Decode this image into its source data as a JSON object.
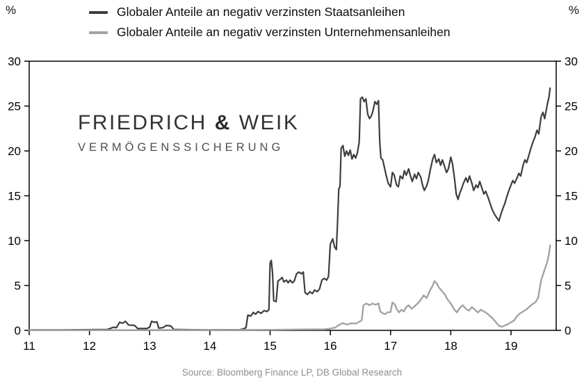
{
  "axes": {
    "left_unit": "%",
    "right_unit": "%"
  },
  "watermark": {
    "name_part1": "FRIEDRICH",
    "ampersand": "&",
    "name_part2": "WEIK",
    "subtitle": "VERMÖGENSSICHERUNG"
  },
  "source": "Source: Bloomberg Finance LP, DB Global Research",
  "chart_data": {
    "type": "line",
    "title": "",
    "xlabel": "",
    "ylabel": "%",
    "xlim": [
      11,
      19.75
    ],
    "ylim": [
      0,
      30
    ],
    "xticks": [
      11,
      12,
      13,
      14,
      15,
      16,
      17,
      18,
      19
    ],
    "yticks": [
      0,
      5,
      10,
      15,
      20,
      25,
      30
    ],
    "grid": false,
    "legend_position": "top",
    "frame": true,
    "series": [
      {
        "name": "Globaler Anteile an negativ verzinsten Staatsanleihen",
        "color": "#3d3d3d",
        "width": 2.2,
        "points": [
          [
            11,
            0.05
          ],
          [
            11.5,
            0.05
          ],
          [
            12,
            0.08
          ],
          [
            12.3,
            0.1
          ],
          [
            12.4,
            0.35
          ],
          [
            12.45,
            0.3
          ],
          [
            12.5,
            0.9
          ],
          [
            12.55,
            0.8
          ],
          [
            12.6,
            1
          ],
          [
            12.65,
            0.6
          ],
          [
            12.75,
            0.55
          ],
          [
            12.8,
            0.2
          ],
          [
            12.95,
            0.2
          ],
          [
            13,
            0.35
          ],
          [
            13.03,
            1
          ],
          [
            13.08,
            0.9
          ],
          [
            13.12,
            0.95
          ],
          [
            13.15,
            0.25
          ],
          [
            13.22,
            0.3
          ],
          [
            13.28,
            0.55
          ],
          [
            13.35,
            0.5
          ],
          [
            13.4,
            0.1
          ],
          [
            13.6,
            0.08
          ],
          [
            14,
            0.05
          ],
          [
            14.5,
            0.08
          ],
          [
            14.55,
            0.15
          ],
          [
            14.6,
            0.3
          ],
          [
            14.63,
            1.7
          ],
          [
            14.68,
            1.6
          ],
          [
            14.72,
            2
          ],
          [
            14.76,
            1.8
          ],
          [
            14.8,
            2.1
          ],
          [
            14.85,
            1.9
          ],
          [
            14.9,
            2.2
          ],
          [
            14.95,
            2.1
          ],
          [
            14.98,
            2.3
          ],
          [
            15,
            7.5
          ],
          [
            15.02,
            7.8
          ],
          [
            15.04,
            6.4
          ],
          [
            15.06,
            3.3
          ],
          [
            15.1,
            3.2
          ],
          [
            15.13,
            5.5
          ],
          [
            15.17,
            5.7
          ],
          [
            15.2,
            5.9
          ],
          [
            15.23,
            5.4
          ],
          [
            15.27,
            5.6
          ],
          [
            15.3,
            5.3
          ],
          [
            15.33,
            5.6
          ],
          [
            15.37,
            5.3
          ],
          [
            15.4,
            5.5
          ],
          [
            15.44,
            6.3
          ],
          [
            15.48,
            6.5
          ],
          [
            15.52,
            6.3
          ],
          [
            15.55,
            6.5
          ],
          [
            15.58,
            4.2
          ],
          [
            15.62,
            4
          ],
          [
            15.66,
            4.3
          ],
          [
            15.7,
            4.1
          ],
          [
            15.74,
            4.5
          ],
          [
            15.78,
            4.3
          ],
          [
            15.82,
            4.6
          ],
          [
            15.86,
            5.6
          ],
          [
            15.9,
            5.8
          ],
          [
            15.94,
            5.6
          ],
          [
            15.97,
            6
          ],
          [
            16,
            9.6
          ],
          [
            16.02,
            9.9
          ],
          [
            16.04,
            10.2
          ],
          [
            16.07,
            9.3
          ],
          [
            16.1,
            9
          ],
          [
            16.12,
            12
          ],
          [
            16.14,
            15.8
          ],
          [
            16.16,
            16
          ],
          [
            16.18,
            20.3
          ],
          [
            16.21,
            20.6
          ],
          [
            16.24,
            19.4
          ],
          [
            16.27,
            20
          ],
          [
            16.3,
            19.5
          ],
          [
            16.33,
            20.1
          ],
          [
            16.36,
            19.1
          ],
          [
            16.39,
            19.6
          ],
          [
            16.42,
            19.2
          ],
          [
            16.45,
            19.8
          ],
          [
            16.48,
            21
          ],
          [
            16.5,
            25.8
          ],
          [
            16.53,
            26
          ],
          [
            16.56,
            25.5
          ],
          [
            16.59,
            25.8
          ],
          [
            16.62,
            24.1
          ],
          [
            16.65,
            23.6
          ],
          [
            16.68,
            23.9
          ],
          [
            16.71,
            24.5
          ],
          [
            16.74,
            25.5
          ],
          [
            16.77,
            25.2
          ],
          [
            16.8,
            25.6
          ],
          [
            16.82,
            21
          ],
          [
            16.84,
            19.2
          ],
          [
            16.87,
            19
          ],
          [
            16.9,
            18.1
          ],
          [
            16.93,
            17.2
          ],
          [
            16.96,
            16.4
          ],
          [
            17,
            16
          ],
          [
            17.03,
            17.6
          ],
          [
            17.06,
            17.3
          ],
          [
            17.1,
            16.2
          ],
          [
            17.13,
            16
          ],
          [
            17.16,
            17.2
          ],
          [
            17.2,
            16.9
          ],
          [
            17.23,
            17.8
          ],
          [
            17.26,
            17.3
          ],
          [
            17.3,
            18
          ],
          [
            17.33,
            17.2
          ],
          [
            17.36,
            16.6
          ],
          [
            17.4,
            17.4
          ],
          [
            17.43,
            16.9
          ],
          [
            17.46,
            17.6
          ],
          [
            17.5,
            17.1
          ],
          [
            17.53,
            16.2
          ],
          [
            17.56,
            15.6
          ],
          [
            17.6,
            16.1
          ],
          [
            17.63,
            16.8
          ],
          [
            17.66,
            17.9
          ],
          [
            17.7,
            19.1
          ],
          [
            17.73,
            19.6
          ],
          [
            17.76,
            18.7
          ],
          [
            17.8,
            19.1
          ],
          [
            17.83,
            18.4
          ],
          [
            17.86,
            19
          ],
          [
            17.9,
            18.2
          ],
          [
            17.93,
            17.6
          ],
          [
            17.96,
            18
          ],
          [
            18,
            19.3
          ],
          [
            18.03,
            18.5
          ],
          [
            18.06,
            17
          ],
          [
            18.09,
            15.2
          ],
          [
            18.12,
            14.6
          ],
          [
            18.15,
            15.3
          ],
          [
            18.18,
            15.8
          ],
          [
            18.21,
            16.4
          ],
          [
            18.25,
            17
          ],
          [
            18.28,
            16.5
          ],
          [
            18.31,
            17.2
          ],
          [
            18.35,
            16.4
          ],
          [
            18.38,
            15.6
          ],
          [
            18.42,
            16.2
          ],
          [
            18.45,
            15.9
          ],
          [
            18.48,
            16.6
          ],
          [
            18.52,
            15.8
          ],
          [
            18.55,
            15.2
          ],
          [
            18.58,
            15.5
          ],
          [
            18.62,
            14.8
          ],
          [
            18.65,
            14.2
          ],
          [
            18.68,
            13.6
          ],
          [
            18.72,
            13
          ],
          [
            18.76,
            12.6
          ],
          [
            18.8,
            12.2
          ],
          [
            18.83,
            12.9
          ],
          [
            18.86,
            13.5
          ],
          [
            18.9,
            14.2
          ],
          [
            18.93,
            14.9
          ],
          [
            18.96,
            15.5
          ],
          [
            19,
            16.2
          ],
          [
            19.03,
            16.7
          ],
          [
            19.06,
            16.4
          ],
          [
            19.1,
            17
          ],
          [
            19.13,
            17.5
          ],
          [
            19.16,
            17.2
          ],
          [
            19.2,
            18.4
          ],
          [
            19.23,
            19
          ],
          [
            19.26,
            18.7
          ],
          [
            19.3,
            19.6
          ],
          [
            19.33,
            20.3
          ],
          [
            19.36,
            20.9
          ],
          [
            19.4,
            21.6
          ],
          [
            19.43,
            22.3
          ],
          [
            19.46,
            21.9
          ],
          [
            19.5,
            23.8
          ],
          [
            19.53,
            24.3
          ],
          [
            19.56,
            23.6
          ],
          [
            19.6,
            25.1
          ],
          [
            19.63,
            26
          ],
          [
            19.65,
            27
          ]
        ]
      },
      {
        "name": "Globaler Anteile an negativ verzinsten Unternehmensanleihen",
        "color": "#a3a3a3",
        "width": 2.4,
        "points": [
          [
            11,
            0.02
          ],
          [
            13,
            0.03
          ],
          [
            14,
            0.03
          ],
          [
            15,
            0.06
          ],
          [
            15.5,
            0.1
          ],
          [
            15.9,
            0.12
          ],
          [
            16,
            0.2
          ],
          [
            16.08,
            0.3
          ],
          [
            16.13,
            0.55
          ],
          [
            16.2,
            0.8
          ],
          [
            16.28,
            0.65
          ],
          [
            16.35,
            0.8
          ],
          [
            16.42,
            0.75
          ],
          [
            16.48,
            0.95
          ],
          [
            16.52,
            1.1
          ],
          [
            16.55,
            2.8
          ],
          [
            16.6,
            3
          ],
          [
            16.65,
            2.8
          ],
          [
            16.7,
            3
          ],
          [
            16.75,
            2.85
          ],
          [
            16.8,
            3
          ],
          [
            16.83,
            2.1
          ],
          [
            16.87,
            1.9
          ],
          [
            16.91,
            1.8
          ],
          [
            16.95,
            2
          ],
          [
            17,
            2.05
          ],
          [
            17.03,
            3.1
          ],
          [
            17.07,
            2.9
          ],
          [
            17.1,
            2.4
          ],
          [
            17.14,
            2
          ],
          [
            17.18,
            2.3
          ],
          [
            17.22,
            2.1
          ],
          [
            17.26,
            2.6
          ],
          [
            17.3,
            2.8
          ],
          [
            17.35,
            2.4
          ],
          [
            17.4,
            2.7
          ],
          [
            17.45,
            3
          ],
          [
            17.5,
            3.4
          ],
          [
            17.55,
            3.9
          ],
          [
            17.6,
            3.6
          ],
          [
            17.65,
            4.4
          ],
          [
            17.7,
            5
          ],
          [
            17.73,
            5.5
          ],
          [
            17.77,
            5.2
          ],
          [
            17.8,
            4.8
          ],
          [
            17.85,
            4.4
          ],
          [
            17.9,
            4
          ],
          [
            17.95,
            3.4
          ],
          [
            18,
            3
          ],
          [
            18.05,
            2.4
          ],
          [
            18.1,
            2
          ],
          [
            18.15,
            2.5
          ],
          [
            18.2,
            2.8
          ],
          [
            18.25,
            2.4
          ],
          [
            18.3,
            2.2
          ],
          [
            18.35,
            2.6
          ],
          [
            18.4,
            2.3
          ],
          [
            18.45,
            2
          ],
          [
            18.5,
            2.3
          ],
          [
            18.55,
            2.1
          ],
          [
            18.6,
            1.9
          ],
          [
            18.65,
            1.6
          ],
          [
            18.7,
            1.3
          ],
          [
            18.75,
            0.9
          ],
          [
            18.8,
            0.5
          ],
          [
            18.85,
            0.4
          ],
          [
            18.9,
            0.55
          ],
          [
            18.95,
            0.7
          ],
          [
            19,
            0.9
          ],
          [
            19.05,
            1.1
          ],
          [
            19.1,
            1.6
          ],
          [
            19.15,
            1.9
          ],
          [
            19.2,
            2.1
          ],
          [
            19.25,
            2.3
          ],
          [
            19.3,
            2.6
          ],
          [
            19.35,
            2.9
          ],
          [
            19.4,
            3.1
          ],
          [
            19.45,
            3.6
          ],
          [
            19.5,
            5.6
          ],
          [
            19.55,
            6.6
          ],
          [
            19.6,
            7.6
          ],
          [
            19.63,
            8.5
          ],
          [
            19.65,
            9.5
          ]
        ]
      }
    ]
  }
}
